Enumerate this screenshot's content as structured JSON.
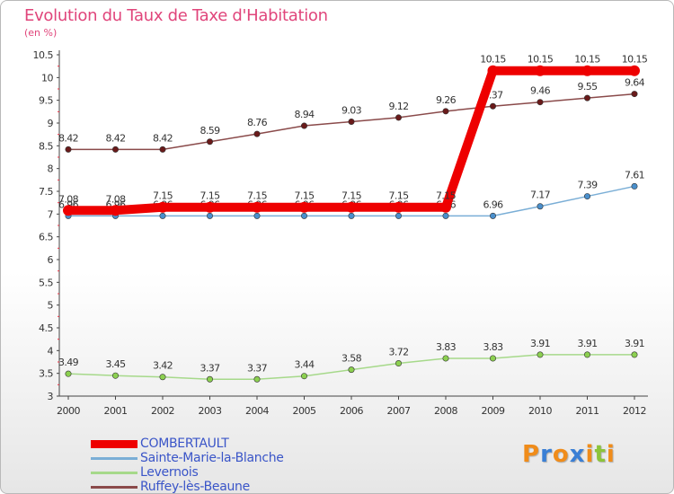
{
  "title": "Evolution du Taux de Taxe d'Habitation",
  "unit": "(en %)",
  "logo": {
    "text": "Proxiti",
    "letter_colors": [
      "#f08c1a",
      "#3a7fd5",
      "#f08c1a",
      "#3a7fd5",
      "#f08c1a",
      "#8cc43a",
      "#f08c1a"
    ]
  },
  "chart_data": {
    "type": "line",
    "title": "Evolution du Taux de Taxe d'Habitation",
    "ylabel": "(en %)",
    "xlabel": "",
    "x": [
      "2000",
      "2001",
      "2002",
      "2003",
      "2004",
      "2005",
      "2006",
      "2007",
      "2008",
      "2009",
      "2010",
      "2011",
      "2012"
    ],
    "ylim": [
      3,
      10.5
    ],
    "yticks": [
      "3",
      "3.5",
      "4",
      "4.5",
      "5",
      "5.5",
      "6",
      "6.5",
      "7",
      "7.5",
      "8",
      "8.5",
      "9",
      "9.5",
      "10",
      "10.5"
    ],
    "grid": false,
    "legend_position": "bottom-left",
    "series": [
      {
        "name": "COMBERTAULT",
        "color": "#ee0000",
        "marker_color": "#ee0000",
        "values": [
          7.08,
          7.08,
          7.15,
          7.15,
          7.15,
          7.15,
          7.15,
          7.15,
          7.15,
          10.15,
          10.15,
          10.15,
          10.15
        ],
        "labels": [
          "7.08",
          "7.08",
          "7.15",
          "7.15",
          "7.15",
          "7.15",
          "7.15",
          "7.15",
          "7.15",
          "10.15",
          "10.15",
          "10.15",
          "10.15"
        ]
      },
      {
        "name": "Sainte-Marie-la-Blanche",
        "color": "#7aaed6",
        "marker_color": "#4a8fcc",
        "values": [
          6.96,
          6.96,
          6.96,
          6.96,
          6.96,
          6.96,
          6.96,
          6.96,
          6.96,
          6.96,
          7.17,
          7.39,
          7.61
        ],
        "labels": [
          "6.96",
          "6.96",
          "6.96",
          "6.96",
          "6.96",
          "6.96",
          "6.96",
          "6.96",
          "6.96",
          "6.96",
          "7.17",
          "7.39",
          "7.61"
        ]
      },
      {
        "name": "Levernois",
        "color": "#a6d98a",
        "marker_color": "#8cd050",
        "values": [
          3.49,
          3.45,
          3.42,
          3.37,
          3.37,
          3.44,
          3.58,
          3.72,
          3.83,
          3.83,
          3.91,
          3.91,
          3.91
        ],
        "labels": [
          "3.49",
          "3.45",
          "3.42",
          "3.37",
          "3.37",
          "3.44",
          "3.58",
          "3.72",
          "3.83",
          "3.83",
          "3.91",
          "3.91",
          "3.91"
        ]
      },
      {
        "name": "Ruffey-lès-Beaune",
        "color": "#8a4a4a",
        "marker_color": "#6a1a1a",
        "values": [
          8.42,
          8.42,
          8.42,
          8.59,
          8.76,
          8.94,
          9.03,
          9.12,
          9.26,
          9.37,
          9.46,
          9.55,
          9.64
        ],
        "labels": [
          "8.42",
          "8.42",
          "8.42",
          "8.59",
          "8.76",
          "8.94",
          "9.03",
          "9.12",
          "9.26",
          "9.37",
          "9.46",
          "9.55",
          "9.64"
        ]
      }
    ]
  }
}
